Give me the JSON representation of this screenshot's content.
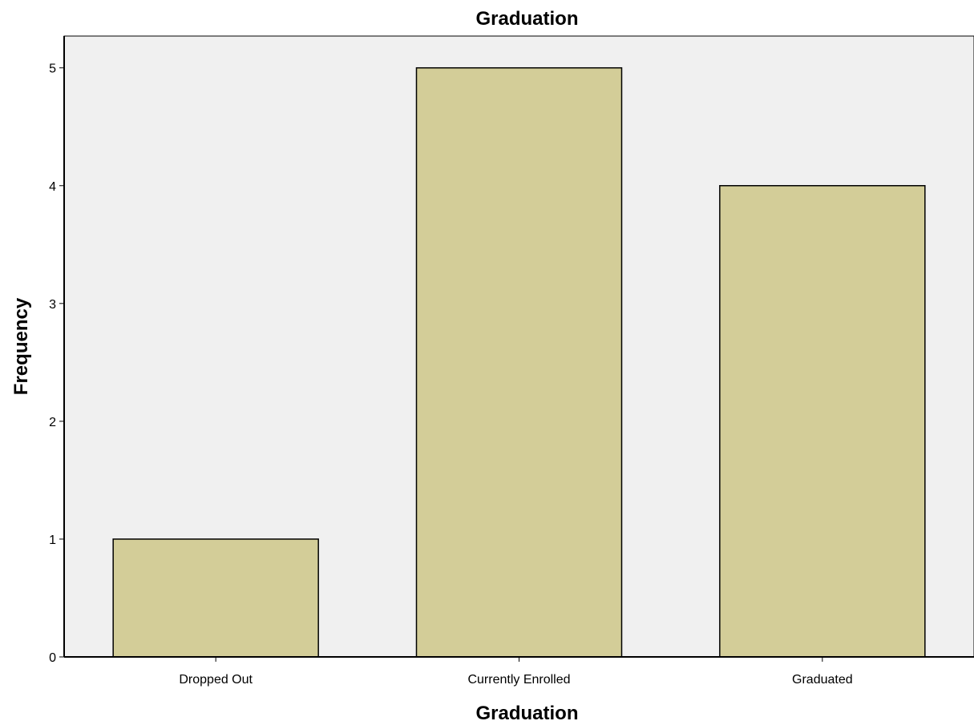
{
  "chart_data": {
    "type": "bar",
    "title": "Graduation",
    "xlabel": "Graduation",
    "ylabel": "Frequency",
    "categories": [
      "Dropped Out",
      "Currently Enrolled",
      "Graduated"
    ],
    "values": [
      1,
      5,
      4
    ],
    "ylim": [
      0,
      5.27
    ],
    "yticks": [
      "0",
      "1",
      "2",
      "3",
      "4",
      "5"
    ],
    "grid": false,
    "legend": "none",
    "colors": {
      "bar_fill": "#d3cd98",
      "bar_stroke": "#000000",
      "plot_background": "#f0f0f0",
      "page_background": "#ffffff",
      "axis": "#000000"
    }
  }
}
